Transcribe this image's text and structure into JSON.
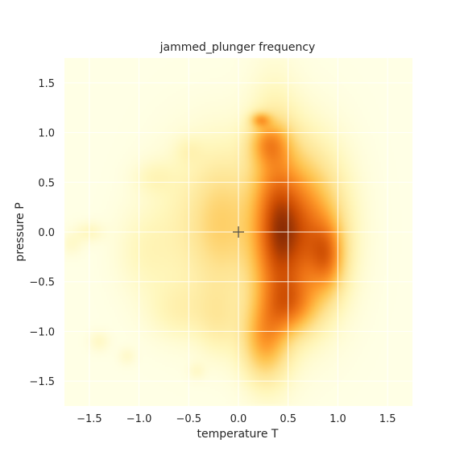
{
  "chart_data": {
    "type": "heatmap",
    "title": "jammed_plunger frequency",
    "xlabel": "temperature T",
    "ylabel": "pressure P",
    "xlim": [
      -1.75,
      1.75
    ],
    "ylim": [
      -1.75,
      1.75
    ],
    "xticks": [
      -1.5,
      -1.0,
      -0.5,
      0.0,
      0.5,
      1.0,
      1.5
    ],
    "yticks": [
      -1.5,
      -1.0,
      -0.5,
      0.0,
      0.5,
      1.0,
      1.5
    ],
    "xtick_labels": [
      "−1.5",
      "−1.0",
      "−0.5",
      "0.0",
      "0.5",
      "1.0",
      "1.5"
    ],
    "ytick_labels": [
      "−1.5",
      "−1.0",
      "−0.5",
      "0.0",
      "0.5",
      "1.0",
      "1.5"
    ],
    "grid": true,
    "colormap": "YlOrBr",
    "background_color": "#ffffe5",
    "marker": {
      "symbol": "+",
      "x": 0.0,
      "y": 0.0,
      "color": "#555555"
    },
    "blobs": [
      {
        "x": 0.65,
        "y": 0.0,
        "sx": 0.28,
        "sy": 0.55,
        "w": 0.95
      },
      {
        "x": 0.35,
        "y": 0.05,
        "sx": 0.18,
        "sy": 0.75,
        "w": 0.7
      },
      {
        "x": 0.25,
        "y": -1.1,
        "sx": 0.16,
        "sy": 0.28,
        "w": 0.55
      },
      {
        "x": 0.3,
        "y": 0.9,
        "sx": 0.14,
        "sy": 0.15,
        "w": 0.45
      },
      {
        "x": 0.22,
        "y": 1.13,
        "sx": 0.07,
        "sy": 0.05,
        "w": 0.5
      },
      {
        "x": 0.9,
        "y": -0.25,
        "sx": 0.12,
        "sy": 0.25,
        "w": 0.5
      },
      {
        "x": 0.55,
        "y": -0.75,
        "sx": 0.18,
        "sy": 0.2,
        "w": 0.45
      },
      {
        "x": -0.15,
        "y": 0.1,
        "sx": 0.2,
        "sy": 0.5,
        "w": 0.35
      },
      {
        "x": -0.45,
        "y": 0.05,
        "sx": 0.3,
        "sy": 0.55,
        "w": 0.22
      },
      {
        "x": -0.6,
        "y": -0.8,
        "sx": 0.22,
        "sy": 0.2,
        "w": 0.16
      },
      {
        "x": -0.2,
        "y": -0.9,
        "sx": 0.15,
        "sy": 0.25,
        "w": 0.2
      },
      {
        "x": -0.95,
        "y": -0.2,
        "sx": 0.2,
        "sy": 0.3,
        "w": 0.13
      },
      {
        "x": -0.85,
        "y": 0.55,
        "sx": 0.15,
        "sy": 0.12,
        "w": 0.12
      },
      {
        "x": -1.5,
        "y": 0.0,
        "sx": 0.1,
        "sy": 0.07,
        "w": 0.14
      },
      {
        "x": -1.68,
        "y": -0.12,
        "sx": 0.08,
        "sy": 0.08,
        "w": 0.1
      },
      {
        "x": -1.4,
        "y": -1.1,
        "sx": 0.07,
        "sy": 0.07,
        "w": 0.12
      },
      {
        "x": -1.12,
        "y": -1.25,
        "sx": 0.06,
        "sy": 0.06,
        "w": 0.1
      },
      {
        "x": -0.42,
        "y": -1.4,
        "sx": 0.06,
        "sy": 0.06,
        "w": 0.1
      },
      {
        "x": -0.5,
        "y": 0.82,
        "sx": 0.1,
        "sy": 0.1,
        "w": 0.1
      }
    ]
  }
}
